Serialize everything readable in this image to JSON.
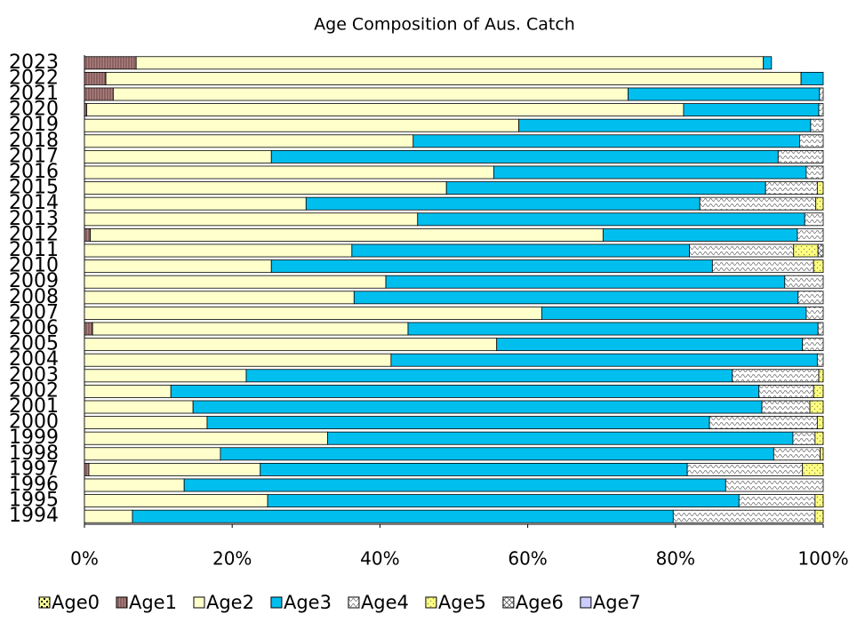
{
  "chart_data": {
    "type": "stacked-bar-horizontal",
    "title": "Age Composition of Aus. Catch",
    "categories": [
      "1994",
      "1995",
      "1996",
      "1997",
      "1998",
      "1999",
      "2000",
      "2001",
      "2002",
      "2003",
      "2004",
      "2005",
      "2006",
      "2007",
      "2008",
      "2009",
      "2010",
      "2011",
      "2012",
      "2013",
      "2014",
      "2015",
      "2016",
      "2017",
      "2018",
      "2019",
      "2020",
      "2021",
      "2022",
      "2023"
    ],
    "xlim": [
      0,
      100
    ],
    "xticks": [
      {
        "value": 0,
        "label": "0%"
      },
      {
        "value": 20,
        "label": "20%"
      },
      {
        "value": 40,
        "label": "40%"
      },
      {
        "value": 60,
        "label": "60%"
      },
      {
        "value": 80,
        "label": "80%"
      },
      {
        "value": 100,
        "label": "100%"
      }
    ],
    "series": [
      {
        "name": "Age0",
        "color": "#ffff99",
        "values": [
          0,
          0,
          0,
          0,
          0,
          0,
          0,
          0,
          0,
          0,
          0,
          0,
          0,
          0,
          0,
          0,
          0,
          0,
          0,
          0,
          0,
          0,
          0,
          0,
          0,
          0,
          0,
          0,
          0,
          0
        ]
      },
      {
        "name": "Age1",
        "color": "#b08080",
        "values": [
          0,
          0,
          0,
          0.6,
          0,
          0,
          0,
          0,
          0,
          0,
          0,
          0,
          1.1,
          0,
          0,
          0,
          0,
          0,
          0.8,
          0,
          0,
          0,
          0,
          0,
          0,
          0,
          0.3,
          3.9,
          2.9,
          7.0
        ]
      },
      {
        "name": "Age2",
        "color": "#ffffcc",
        "values": [
          6.5,
          24.8,
          13.5,
          23.2,
          18.4,
          32.9,
          16.6,
          14.7,
          11.7,
          21.9,
          41.5,
          55.8,
          42.7,
          61.9,
          36.5,
          40.8,
          25.3,
          36.2,
          69.4,
          45.1,
          30.0,
          49.0,
          55.4,
          25.3,
          44.5,
          58.8,
          80.8,
          69.7,
          94.1,
          84.9
        ]
      },
      {
        "name": "Age3",
        "color": "#00bfef",
        "values": [
          73.2,
          63.8,
          73.3,
          57.8,
          74.9,
          63.0,
          68.0,
          77.0,
          79.6,
          65.8,
          57.7,
          41.4,
          55.5,
          35.8,
          60.1,
          54.0,
          59.7,
          45.7,
          26.3,
          52.4,
          53.3,
          43.2,
          42.3,
          68.6,
          52.3,
          39.5,
          18.3,
          25.9,
          3.0,
          1.1
        ]
      },
      {
        "name": "Age4",
        "color": "#ffffff",
        "values": [
          19.2,
          10.3,
          13.2,
          15.6,
          6.3,
          3.0,
          14.6,
          6.5,
          7.4,
          11.7,
          0.8,
          2.8,
          0.7,
          2.3,
          3.4,
          5.2,
          13.7,
          14.1,
          3.5,
          2.5,
          15.7,
          7.0,
          2.3,
          6.1,
          3.2,
          1.7,
          0.6,
          0.5,
          0,
          0
        ]
      },
      {
        "name": "Age5",
        "color": "#ffff80",
        "values": [
          1.1,
          1.1,
          0,
          2.8,
          0.4,
          1.1,
          0.8,
          1.8,
          1.3,
          0.6,
          0,
          0,
          0,
          0,
          0,
          0,
          1.3,
          3.3,
          0,
          0,
          1.0,
          0.8,
          0,
          0,
          0,
          0,
          0,
          0,
          0,
          0
        ]
      },
      {
        "name": "Age6",
        "color": "#ffffff",
        "values": [
          0,
          0,
          0,
          0,
          0,
          0,
          0,
          0,
          0,
          0,
          0,
          0,
          0,
          0,
          0,
          0,
          0,
          0.7,
          0,
          0,
          0,
          0,
          0,
          0,
          0,
          0,
          0,
          0,
          0,
          0
        ]
      },
      {
        "name": "Age7",
        "color": "#ccccff",
        "values": [
          0,
          0,
          0,
          0,
          0,
          0,
          0,
          0,
          0,
          0,
          0,
          0,
          0,
          0,
          0,
          0,
          0,
          0,
          0,
          0,
          0,
          0,
          0,
          0,
          0,
          0,
          0,
          0,
          0,
          0
        ]
      }
    ]
  }
}
